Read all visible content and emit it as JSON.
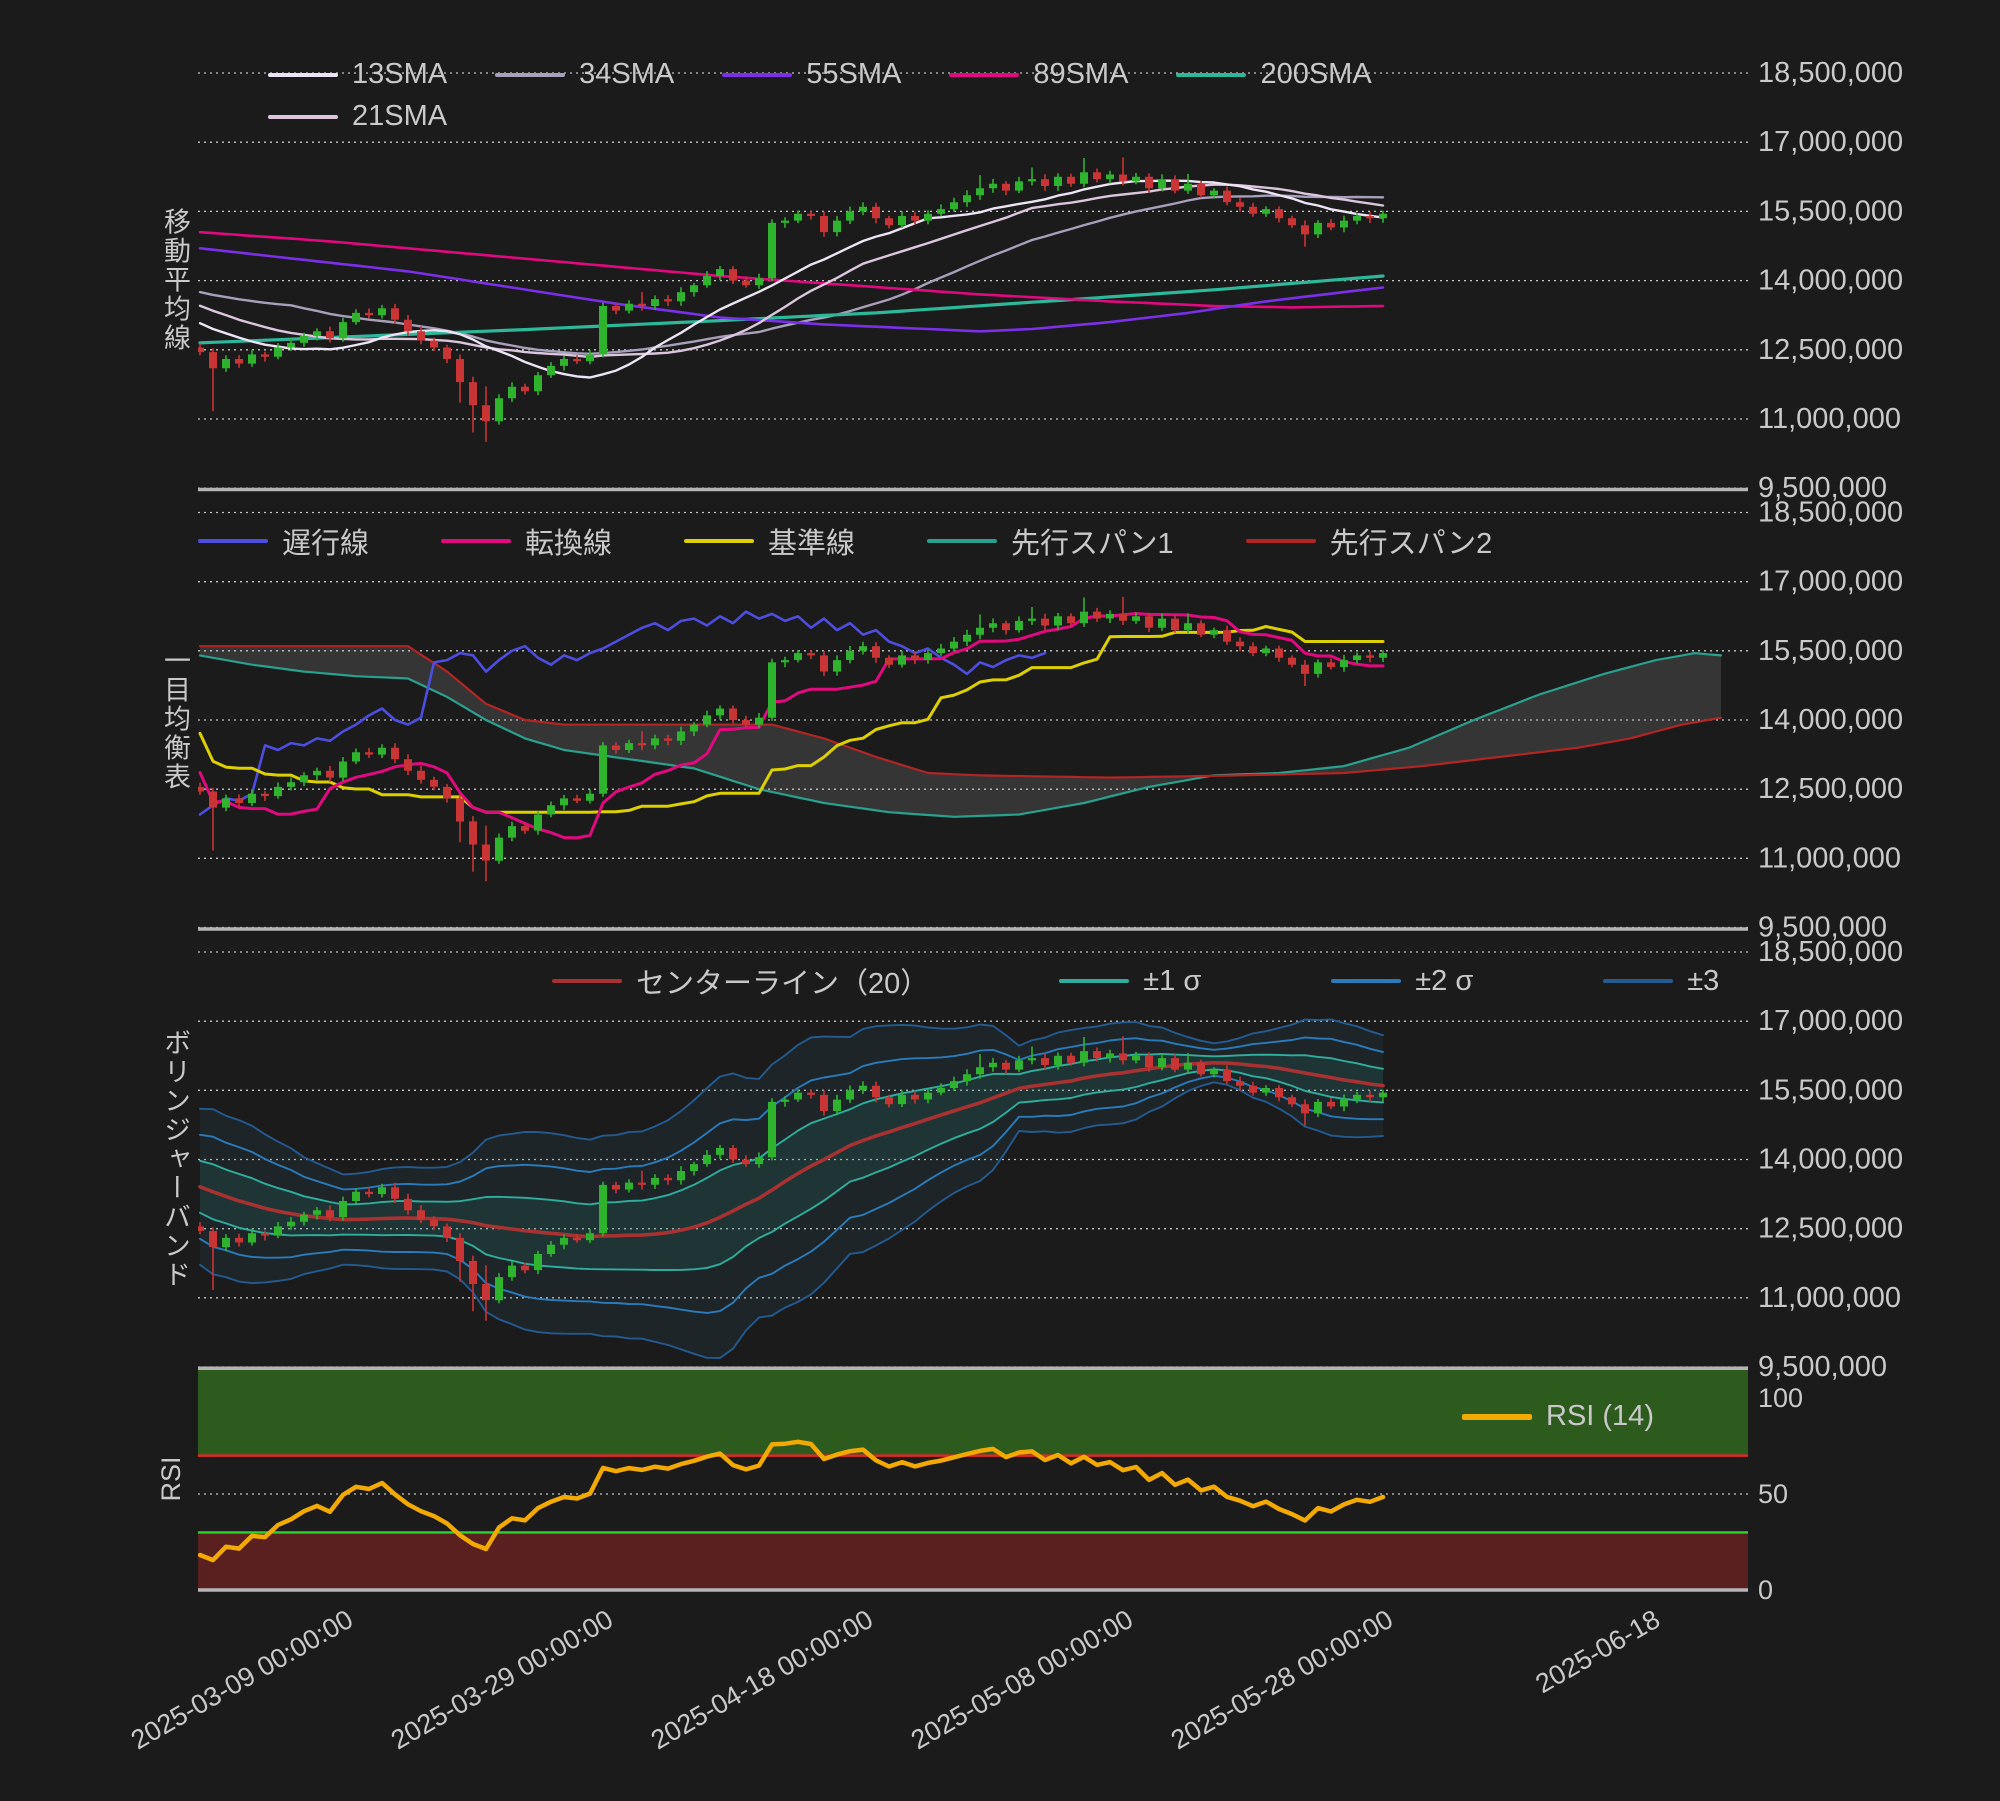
{
  "page": {
    "background": "#1b1b1b"
  },
  "ylabels": {
    "sma": "移動平均線",
    "ichimoku": "一目均衡表",
    "bollinger": "ボリンジャーバンド",
    "rsi": "RSI"
  },
  "legend": {
    "sma13": "13SMA",
    "sma34": "34SMA",
    "sma55": "55SMA",
    "sma89": "89SMA",
    "sma200": "200SMA",
    "sma21": "21SMA",
    "chikou": "遅行線",
    "tenkan": "転換線",
    "kijun": "基準線",
    "senkou_a": "先行スパン1",
    "senkou_b": "先行スパン2",
    "bb_center": "センターライン（20）",
    "bb1": "±1 σ",
    "bb2": "±2 σ",
    "bb3": "±3",
    "rsi": "RSI (14)"
  },
  "axis": {
    "price_ticks": [
      "18,500,000",
      "17,000,000",
      "15,500,000",
      "14,000,000",
      "12,500,000",
      "11,000,000",
      "9,500,000"
    ],
    "rsi_ticks": [
      "100",
      "50",
      "0"
    ],
    "x_ticks": [
      "2025-03-09 00:00:00",
      "2025-03-29 00:00:00",
      "2025-04-18 00:00:00",
      "2025-05-08 00:00:00",
      "2025-05-28 00:00:00",
      "2025-06-18"
    ]
  },
  "colors": {
    "background": "#1b1b1b",
    "grid": "rgba(255,255,255,0.75)",
    "separator": "#b5b5b5",
    "axis_text": "#c9c9c9",
    "candle_up": "#2fb32f",
    "candle_down": "#c93434",
    "sma13": "#ece4f4",
    "sma21": "#dcc6de",
    "sma34": "#a89fba",
    "sma55": "#7a2fe8",
    "sma89": "#e00a7e",
    "sma200": "#2db89a",
    "chikou": "#4d4de0",
    "tenkan": "#e00a7e",
    "kijun": "#ddd000",
    "senkou_a": "#2aa08e",
    "senkou_b": "#b22525",
    "cloud_fill": "rgba(190,190,190,0.16)",
    "bb_center": "#a83232",
    "bb1": "#2fae9e",
    "bb2": "#2b7bba",
    "bb3": "#245a8f",
    "bb_fill_outer": "rgba(45,110,140,0.13)",
    "bb_fill_inner": "rgba(45,150,130,0.14)",
    "rsi_line": "#f2a900",
    "rsi_overbought_fill": "#2d5a1d",
    "rsi_oversold_fill": "#5a2020",
    "rsi_70_line": "#e02828",
    "rsi_30_line": "#2fd32f"
  },
  "chart_data": {
    "type": "candlestick_multi_panel",
    "panels": [
      "移動平均線 (SMA 13/21/34/55/89/200)",
      "一目均衡表 (Ichimoku)",
      "ボリンジャーバンド (Bollinger ±1σ ±2σ ±3σ)",
      "RSI (14)"
    ],
    "price_axis_range_millions": [
      9.5,
      18.5
    ],
    "price_gridline_step_millions": 1.5,
    "rsi_axis_range": [
      0,
      115
    ],
    "x_tick_labels": [
      "2025-03-09 00:00:00",
      "2025-03-29 00:00:00",
      "2025-04-18 00:00:00",
      "2025-05-08 00:00:00",
      "2025-05-28 00:00:00",
      "2025-06-18"
    ],
    "first_candle_date": "2025-02-26",
    "last_candle_date": "2025-05-28",
    "period": "daily",
    "closes_millions": [
      12.45,
      12.1,
      12.3,
      12.2,
      12.4,
      12.35,
      12.55,
      12.65,
      12.8,
      12.9,
      12.75,
      13.1,
      13.3,
      13.25,
      13.4,
      13.15,
      12.9,
      12.7,
      12.55,
      12.3,
      11.8,
      11.3,
      10.95,
      11.45,
      11.7,
      11.6,
      11.95,
      12.15,
      12.3,
      12.25,
      12.4,
      13.45,
      13.35,
      13.5,
      13.45,
      13.6,
      13.55,
      13.75,
      13.9,
      14.1,
      14.25,
      14.0,
      13.9,
      14.05,
      15.25,
      15.3,
      15.45,
      15.4,
      15.05,
      15.3,
      15.5,
      15.6,
      15.35,
      15.2,
      15.4,
      15.3,
      15.45,
      15.55,
      15.7,
      15.85,
      16.0,
      16.1,
      15.95,
      16.15,
      16.2,
      16.05,
      16.25,
      16.1,
      16.35,
      16.2,
      16.3,
      16.15,
      16.25,
      16.0,
      16.2,
      15.95,
      16.1,
      15.85,
      15.95,
      15.7,
      15.6,
      15.45,
      15.55,
      15.35,
      15.2,
      15.0,
      15.25,
      15.15,
      15.3,
      15.4,
      15.35,
      15.45
    ],
    "history_closes_millions": [
      15.0,
      14.85,
      14.95,
      14.7,
      14.55,
      14.65,
      14.4,
      14.25,
      14.35,
      14.1,
      13.95,
      14.05,
      13.8,
      13.65,
      13.75,
      13.5,
      13.4,
      13.5,
      13.25,
      13.1,
      13.2,
      12.95,
      12.8,
      12.9,
      12.65,
      12.55
    ],
    "extra_wicks": {
      "1": [
        0,
        0.85
      ],
      "20": [
        0,
        0.35
      ],
      "21": [
        0.05,
        0.5
      ],
      "22": [
        0.3,
        0.35
      ],
      "34": [
        0.15,
        0
      ],
      "60": [
        0.2,
        0
      ],
      "64": [
        0.15,
        0
      ],
      "68": [
        0.22,
        0
      ],
      "71": [
        0.28,
        0
      ],
      "76": [
        0.15,
        0
      ],
      "85": [
        0,
        0.18
      ]
    },
    "indicator_params": {
      "sma_computed": [
        13,
        21,
        34
      ],
      "rsi": 14,
      "bollinger_window": 20,
      "ichimoku": [
        9,
        26,
        52
      ],
      "chikou_shift": -26,
      "senkou_shift": 26
    },
    "sma_waypoints": {
      "sma55": [
        [
          0,
          14.7
        ],
        [
          8,
          14.45
        ],
        [
          16,
          14.2
        ],
        [
          24,
          13.85
        ],
        [
          32,
          13.5
        ],
        [
          40,
          13.2
        ],
        [
          48,
          13.05
        ],
        [
          56,
          12.95
        ],
        [
          60,
          12.9
        ],
        [
          64,
          12.95
        ],
        [
          70,
          13.1
        ],
        [
          76,
          13.3
        ],
        [
          82,
          13.55
        ],
        [
          91,
          13.85
        ]
      ],
      "sma89": [
        [
          0,
          15.05
        ],
        [
          10,
          14.85
        ],
        [
          20,
          14.6
        ],
        [
          30,
          14.35
        ],
        [
          40,
          14.1
        ],
        [
          50,
          13.9
        ],
        [
          60,
          13.7
        ],
        [
          70,
          13.55
        ],
        [
          78,
          13.45
        ],
        [
          84,
          13.42
        ],
        [
          91,
          13.45
        ]
      ],
      "sma200": [
        [
          0,
          12.65
        ],
        [
          13,
          12.8
        ],
        [
          26,
          12.95
        ],
        [
          39,
          13.12
        ],
        [
          52,
          13.3
        ],
        [
          65,
          13.55
        ],
        [
          78,
          13.8
        ],
        [
          91,
          14.1
        ]
      ]
    },
    "senkou_a_waypoints": [
      [
        0,
        15.4
      ],
      [
        4,
        15.2
      ],
      [
        8,
        15.05
      ],
      [
        12,
        14.95
      ],
      [
        16,
        14.9
      ],
      [
        19,
        14.5
      ],
      [
        22,
        14.0
      ],
      [
        25,
        13.6
      ],
      [
        28,
        13.35
      ],
      [
        33,
        13.15
      ],
      [
        38,
        12.95
      ],
      [
        43,
        12.5
      ],
      [
        48,
        12.2
      ],
      [
        53,
        12.0
      ],
      [
        58,
        11.9
      ],
      [
        63,
        11.95
      ],
      [
        68,
        12.2
      ],
      [
        73,
        12.55
      ],
      [
        78,
        12.8
      ],
      [
        83,
        12.85
      ],
      [
        88,
        13.0
      ],
      [
        93,
        13.4
      ],
      [
        98,
        14.0
      ],
      [
        103,
        14.55
      ],
      [
        108,
        15.0
      ],
      [
        112,
        15.3
      ],
      [
        115,
        15.45
      ],
      [
        117,
        15.4
      ]
    ],
    "senkou_b_waypoints": [
      [
        0,
        15.6
      ],
      [
        16,
        15.6
      ],
      [
        19,
        15.05
      ],
      [
        22,
        14.35
      ],
      [
        25,
        14.0
      ],
      [
        28,
        13.9
      ],
      [
        44,
        13.9
      ],
      [
        48,
        13.6
      ],
      [
        52,
        13.2
      ],
      [
        56,
        12.85
      ],
      [
        60,
        12.8
      ],
      [
        70,
        12.75
      ],
      [
        80,
        12.8
      ],
      [
        88,
        12.85
      ],
      [
        94,
        13.0
      ],
      [
        100,
        13.2
      ],
      [
        106,
        13.4
      ],
      [
        110,
        13.6
      ],
      [
        114,
        13.9
      ],
      [
        117,
        14.05
      ]
    ],
    "rsi_bands": {
      "overbought_from": 70,
      "oversold_to": 30
    }
  }
}
